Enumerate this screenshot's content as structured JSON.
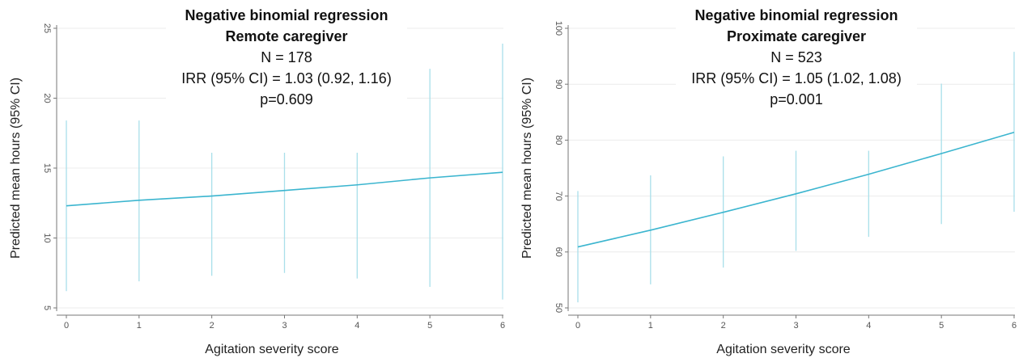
{
  "chart_data": [
    {
      "type": "line",
      "title": "Negative binomial regression",
      "subtitle": "Remote caregiver",
      "annotations": [
        "N = 178",
        "IRR (95% CI) = 1.03 (0.92, 1.16)",
        "p=0.609"
      ],
      "xlabel": "Agitation severity score",
      "ylabel": "Predicted mean hours (95% CI)",
      "xlim": [
        0,
        6
      ],
      "ylim": [
        5,
        25
      ],
      "xticks": [
        "0",
        "1",
        "2",
        "3",
        "4",
        "5",
        "6"
      ],
      "yticks": [
        "5",
        "10",
        "15",
        "20",
        "25"
      ],
      "grid": true,
      "line_color": "#3bb5cf",
      "ci_color": "#a9dfea",
      "series": [
        {
          "x": [
            0,
            1,
            2,
            3,
            4,
            5,
            6
          ],
          "values": [
            12.3,
            12.7,
            13.0,
            13.4,
            13.8,
            14.3,
            14.7
          ],
          "ci_low": [
            6.2,
            6.9,
            7.3,
            7.5,
            7.1,
            6.5,
            5.6
          ],
          "ci_high": [
            18.4,
            18.4,
            16.1,
            16.1,
            16.1,
            22.1,
            23.9
          ]
        }
      ]
    },
    {
      "type": "line",
      "title": "Negative binomial regression",
      "subtitle": "Proximate caregiver",
      "annotations": [
        "N = 523",
        "IRR (95% CI) = 1.05 (1.02, 1.08)",
        "p=0.001"
      ],
      "xlabel": "Agitation severity score",
      "ylabel": "Predicted mean hours (95% CI)",
      "xlim": [
        0,
        6
      ],
      "ylim": [
        50,
        100
      ],
      "xticks": [
        "0",
        "1",
        "2",
        "3",
        "4",
        "5",
        "6"
      ],
      "yticks": [
        "50",
        "60",
        "70",
        "80",
        "90",
        "100"
      ],
      "grid": true,
      "line_color": "#3bb5cf",
      "ci_color": "#a9dfea",
      "series": [
        {
          "x": [
            0,
            1,
            2,
            3,
            4,
            5,
            6
          ],
          "values": [
            60.9,
            63.9,
            67.1,
            70.4,
            73.9,
            77.6,
            81.4
          ],
          "ci_low": [
            51.0,
            54.2,
            57.2,
            60.2,
            62.7,
            65.0,
            67.2
          ],
          "ci_high": [
            70.9,
            73.7,
            77.1,
            78.1,
            78.1,
            90.1,
            95.8
          ]
        }
      ]
    }
  ]
}
